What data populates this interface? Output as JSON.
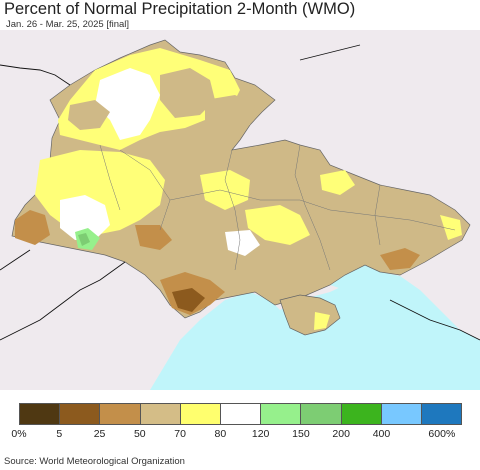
{
  "title": "Percent of Normal Precipitation 2-Month (WMO)",
  "subtitle": "Jan. 26 - Mar. 25, 2025 [final]",
  "source": "Source: World Meteorological Organization",
  "legend": {
    "colors": [
      "#4f3812",
      "#8c5a1e",
      "#c38f4a",
      "#d4bd87",
      "#ffff6e",
      "#ffffff",
      "#96f08c",
      "#7dcd73",
      "#3cb41e",
      "#78c8ff",
      "#1e78be"
    ],
    "labels": [
      "0%",
      "5",
      "25",
      "50",
      "70",
      "80",
      "120",
      "150",
      "200",
      "400",
      "600%"
    ]
  },
  "map_colors": {
    "background": "#efeaee",
    "sea": "#c0f5fa",
    "dry_50": "#cfb987",
    "dry_25": "#c38f4a",
    "dry_5": "#8c5a1e",
    "normal_70": "#ffff78",
    "normal_80": "#ffffff",
    "wet_120": "#96f08c",
    "wet_150": "#7dcd73"
  }
}
